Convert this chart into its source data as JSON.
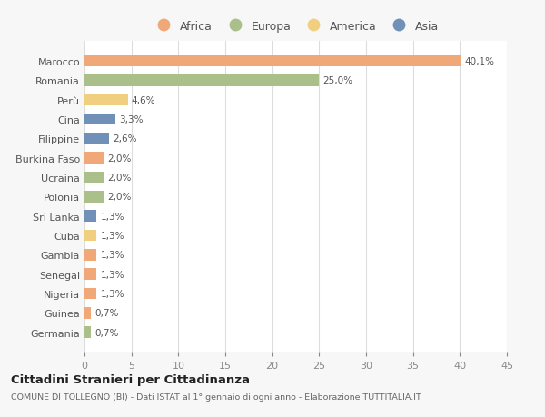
{
  "countries": [
    "Marocco",
    "Romania",
    "Perù",
    "Cina",
    "Filippine",
    "Burkina Faso",
    "Ucraina",
    "Polonia",
    "Sri Lanka",
    "Cuba",
    "Gambia",
    "Senegal",
    "Nigeria",
    "Guinea",
    "Germania"
  ],
  "values": [
    40.1,
    25.0,
    4.6,
    3.3,
    2.6,
    2.0,
    2.0,
    2.0,
    1.3,
    1.3,
    1.3,
    1.3,
    1.3,
    0.7,
    0.7
  ],
  "labels": [
    "40,1%",
    "25,0%",
    "4,6%",
    "3,3%",
    "2,6%",
    "2,0%",
    "2,0%",
    "2,0%",
    "1,3%",
    "1,3%",
    "1,3%",
    "1,3%",
    "1,3%",
    "0,7%",
    "0,7%"
  ],
  "continents": [
    "Africa",
    "Europa",
    "America",
    "Asia",
    "Asia",
    "Africa",
    "Europa",
    "Europa",
    "Asia",
    "America",
    "Africa",
    "Africa",
    "Africa",
    "Africa",
    "Europa"
  ],
  "colors": {
    "Africa": "#F0A878",
    "Europa": "#AABF8A",
    "America": "#F0D080",
    "Asia": "#7090B8"
  },
  "legend_order": [
    "Africa",
    "Europa",
    "America",
    "Asia"
  ],
  "title": "Cittadini Stranieri per Cittadinanza",
  "subtitle": "COMUNE DI TOLLEGNO (BI) - Dati ISTAT al 1° gennaio di ogni anno - Elaborazione TUTTITALIA.IT",
  "xlim": [
    0,
    45
  ],
  "xticks": [
    0,
    5,
    10,
    15,
    20,
    25,
    30,
    35,
    40,
    45
  ],
  "background_color": "#f7f7f7",
  "plot_background": "#ffffff"
}
